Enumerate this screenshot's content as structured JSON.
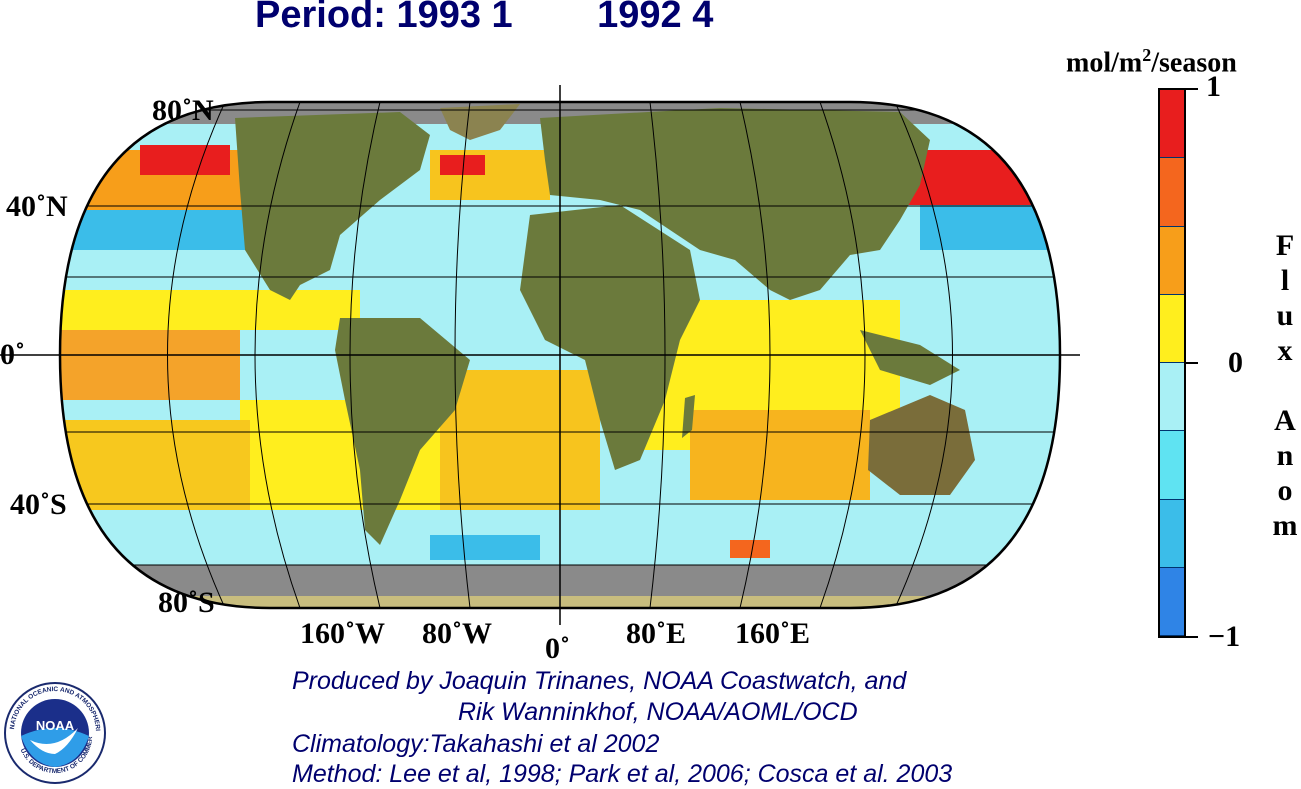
{
  "header": {
    "period_label": "Period: 1993 1",
    "period_secondary": "1992 4"
  },
  "map": {
    "lat_labels": [
      "80˚N",
      "40˚N",
      "0˚",
      "40˚S",
      "80˚S"
    ],
    "lon_labels": [
      "160˚W",
      "80˚W",
      "0˚",
      "80˚E",
      "160˚E"
    ],
    "land_color": "#6b7a3c",
    "no_data_color": "#8a8a8a",
    "projection_outline": "black"
  },
  "colorbar": {
    "units_prefix": "mol/m",
    "units_exponent": "2",
    "units_suffix": "/season",
    "max_label": "1",
    "mid_label": "0",
    "min_label": "−1",
    "min": -1,
    "max": 1,
    "colors": [
      "#e81e1e",
      "#f4661e",
      "#f79e1a",
      "#ffee1e",
      "#a9f0f5",
      "#5fe3f2",
      "#3bbde9",
      "#2f84e6"
    ],
    "title_letters": [
      "F",
      "l",
      "u",
      "x",
      "",
      "A",
      "n",
      "o",
      "m"
    ]
  },
  "credits": {
    "line1": "Produced by Joaquin Trinanes, NOAA Coastwatch, and",
    "line2": "Rik Wanninkhof, NOAA/AOML/OCD",
    "line3": "Climatology:Takahashi et al 2002",
    "line4": "Method: Lee et al, 1998; Park et al, 2006; Cosca et al. 2003"
  },
  "logo": {
    "text": "NOAA",
    "ring_text_top": "NATIONAL OCEANIC AND ATMOSPHERIC ADMINISTRATION",
    "ring_text_bottom": "U.S. DEPARTMENT OF COMMERCE"
  }
}
